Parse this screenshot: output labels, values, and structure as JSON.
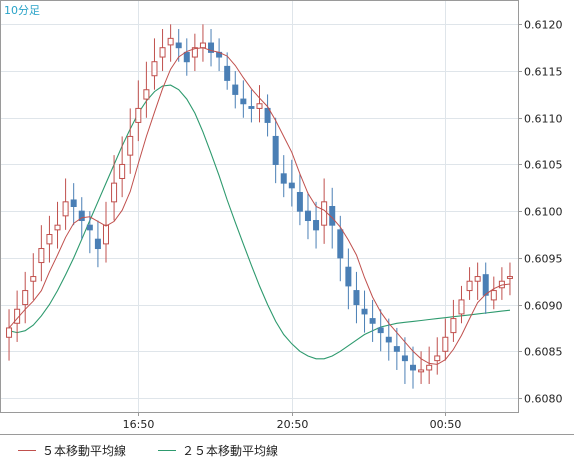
{
  "chart_data": {
    "type": "candlestick",
    "timeframe_label": "10分足",
    "x_tick_labels": [
      "16:50",
      "20:50",
      "00:50"
    ],
    "ylim": [
      0.60785,
      0.61225
    ],
    "y_ticks": [
      {
        "value": 0.612,
        "label": "0.6120"
      },
      {
        "value": 0.6115,
        "label": "0.6115"
      },
      {
        "value": 0.611,
        "label": "0.6110"
      },
      {
        "value": 0.6105,
        "label": "0.6105"
      },
      {
        "value": 0.61,
        "label": "0.6100"
      },
      {
        "value": 0.6095,
        "label": "0.6095"
      },
      {
        "value": 0.609,
        "label": "0.6090"
      },
      {
        "value": 0.6085,
        "label": "0.6085"
      },
      {
        "value": 0.608,
        "label": "0.6080"
      }
    ],
    "grid": true,
    "legend_position": "bottom",
    "legend": [
      {
        "label": "５本移動平均線",
        "color": "#c0504d"
      },
      {
        "label": "２５本移動平均線",
        "color": "#2e9a6e"
      }
    ],
    "colors": {
      "up": "#c0504d",
      "down": "#4a7fb5",
      "ma5": "#c0504d",
      "ma25": "#2e9a6e",
      "grid": "#dfe5ea",
      "frame": "#9a9a9a"
    },
    "close": [
      0.60875,
      0.60895,
      0.60915,
      0.6093,
      0.6096,
      0.60975,
      0.60985,
      0.6101,
      0.61005,
      0.6099,
      0.6098,
      0.6096,
      0.60985,
      0.6103,
      0.6105,
      0.6108,
      0.6111,
      0.6113,
      0.6116,
      0.61175,
      0.61185,
      0.61175,
      0.6116,
      0.61175,
      0.6118,
      0.6117,
      0.61165,
      0.6114,
      0.61125,
      0.61115,
      0.6111,
      0.61115,
      0.61095,
      0.6105,
      0.6103,
      0.61025,
      0.61,
      0.6099,
      0.6098,
      0.6101,
      0.60985,
      0.6095,
      0.6092,
      0.609,
      0.6089,
      0.6088,
      0.6087,
      0.6086,
      0.6085,
      0.6084,
      0.6083,
      0.6083,
      0.60835,
      0.60845,
      0.60865,
      0.60885,
      0.60905,
      0.60925,
      0.6093,
      0.6091,
      0.60915,
      0.60925,
      0.6093
    ],
    "open": [
      0.60865,
      0.6088,
      0.609,
      0.60925,
      0.60945,
      0.60965,
      0.6098,
      0.60995,
      0.61012,
      0.61,
      0.60985,
      0.6097,
      0.60965,
      0.6101,
      0.61035,
      0.6106,
      0.61095,
      0.6112,
      0.61145,
      0.61165,
      0.61178,
      0.6118,
      0.6117,
      0.61165,
      0.61175,
      0.6118,
      0.6117,
      0.61155,
      0.61135,
      0.6112,
      0.61112,
      0.6111,
      0.6111,
      0.6108,
      0.6104,
      0.6103,
      0.6102,
      0.61,
      0.6099,
      0.60985,
      0.61005,
      0.6098,
      0.6094,
      0.60915,
      0.60895,
      0.60885,
      0.60875,
      0.60865,
      0.60855,
      0.60845,
      0.60835,
      0.60828,
      0.6083,
      0.6084,
      0.6085,
      0.6087,
      0.6089,
      0.60915,
      0.60925,
      0.60932,
      0.60905,
      0.60918,
      0.60928
    ],
    "high": [
      0.60895,
      0.60915,
      0.60935,
      0.60955,
      0.60985,
      0.60995,
      0.6101,
      0.61035,
      0.6103,
      0.61015,
      0.61,
      0.6099,
      0.6101,
      0.6106,
      0.6108,
      0.6111,
      0.6114,
      0.6116,
      0.61185,
      0.61195,
      0.612,
      0.61195,
      0.61185,
      0.6119,
      0.612,
      0.61195,
      0.61185,
      0.6117,
      0.6115,
      0.6114,
      0.6113,
      0.61135,
      0.61125,
      0.611,
      0.6106,
      0.61055,
      0.6104,
      0.6102,
      0.6101,
      0.61035,
      0.61025,
      0.60995,
      0.6096,
      0.60935,
      0.60915,
      0.60905,
      0.60895,
      0.60885,
      0.60875,
      0.60865,
      0.60855,
      0.6085,
      0.60855,
      0.60865,
      0.60885,
      0.60905,
      0.6092,
      0.6094,
      0.60945,
      0.60945,
      0.6093,
      0.6094,
      0.60945
    ],
    "low": [
      0.6084,
      0.6086,
      0.6088,
      0.60905,
      0.60925,
      0.60945,
      0.6096,
      0.6098,
      0.60985,
      0.6097,
      0.60955,
      0.6094,
      0.60945,
      0.6099,
      0.61015,
      0.6104,
      0.61075,
      0.611,
      0.6113,
      0.6115,
      0.6116,
      0.6116,
      0.61145,
      0.6115,
      0.6116,
      0.61155,
      0.6115,
      0.6113,
      0.6111,
      0.611,
      0.61095,
      0.61095,
      0.6108,
      0.6103,
      0.61015,
      0.61005,
      0.60985,
      0.6097,
      0.6096,
      0.60965,
      0.6096,
      0.60925,
      0.60895,
      0.6088,
      0.6087,
      0.6086,
      0.6085,
      0.6084,
      0.6083,
      0.60815,
      0.6081,
      0.60815,
      0.60815,
      0.60825,
      0.6084,
      0.6086,
      0.6088,
      0.60905,
      0.60905,
      0.6089,
      0.60895,
      0.60905,
      0.6091
    ],
    "ma25": [
      0.60872,
      0.6087,
      0.60872,
      0.60878,
      0.60888,
      0.609,
      0.60915,
      0.60932,
      0.6095,
      0.6097,
      0.6099,
      0.6101,
      0.6103,
      0.6105,
      0.6107,
      0.61088,
      0.61105,
      0.61118,
      0.61128,
      0.61134,
      0.61135,
      0.6113,
      0.6112,
      0.61105,
      0.61085,
      0.61062,
      0.61038,
      0.61012,
      0.60988,
      0.60965,
      0.60942,
      0.6092,
      0.609,
      0.60882,
      0.60868,
      0.60858,
      0.6085,
      0.60845,
      0.60842,
      0.60842,
      0.60845,
      0.6085,
      0.60856,
      0.60862,
      0.60868,
      0.60872,
      0.60876,
      0.60878,
      0.6088,
      0.60881,
      0.60882,
      0.60883,
      0.60884,
      0.60885,
      0.60886,
      0.60887,
      0.60888,
      0.60889,
      0.6089,
      0.60891,
      0.60892,
      0.60893,
      0.60894
    ],
    "x_tick_index": [
      16,
      35,
      54
    ]
  }
}
